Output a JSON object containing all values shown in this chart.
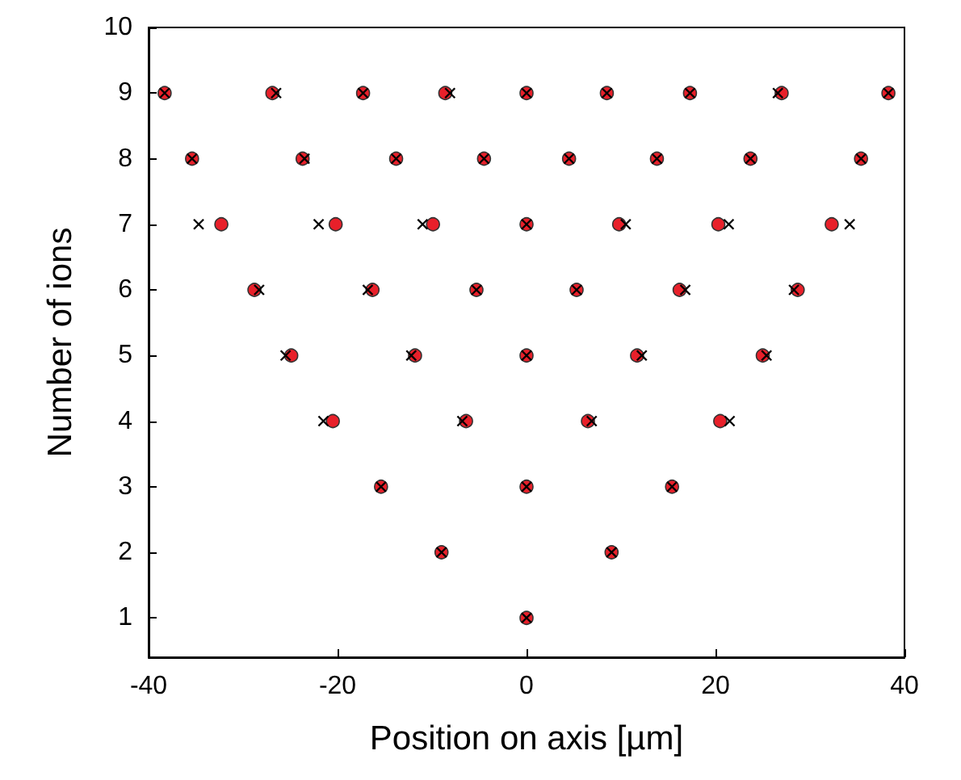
{
  "chart_data": {
    "type": "scatter",
    "xlabel": "Position on axis [µm]",
    "ylabel": "Number of ions",
    "xlim": [
      -40,
      40
    ],
    "xticks": [
      -40,
      -20,
      0,
      20,
      40
    ],
    "ylim": [
      0.4,
      10
    ],
    "yticks": [
      1,
      2,
      3,
      4,
      5,
      6,
      7,
      8,
      9,
      10
    ],
    "grid": false,
    "series": [
      {
        "color": "#e8202a",
        "marker": "circle",
        "x": [
          -38.3,
          -26.9,
          -17.3,
          -8.6,
          0,
          8.5,
          17.3,
          27.0,
          38.3,
          -35.4,
          -23.7,
          -13.8,
          -4.5,
          4.5,
          13.8,
          23.7,
          35.4,
          -32.3,
          -20.2,
          -9.9,
          0,
          9.8,
          20.3,
          32.3,
          -28.8,
          -16.3,
          -5.3,
          5.3,
          16.2,
          28.7,
          -24.9,
          -11.8,
          0,
          11.7,
          25.0,
          -20.5,
          -6.4,
          6.5,
          20.5,
          -15.4,
          0,
          15.4,
          -9.0,
          9.0,
          0
        ],
        "values": [
          9,
          9,
          9,
          9,
          9,
          9,
          9,
          9,
          9,
          8,
          8,
          8,
          8,
          8,
          8,
          8,
          8,
          7,
          7,
          7,
          7,
          7,
          7,
          7,
          6,
          6,
          6,
          6,
          6,
          6,
          5,
          5,
          5,
          5,
          5,
          4,
          4,
          4,
          4,
          3,
          3,
          3,
          2,
          2,
          1
        ]
      },
      {
        "color": "#000000",
        "marker": "cross",
        "x": [
          -38.3,
          -26.5,
          -17.3,
          -8.1,
          0,
          8.5,
          17.3,
          26.6,
          38.3,
          -35.4,
          -23.5,
          -13.8,
          -4.5,
          4.5,
          13.8,
          23.7,
          35.4,
          -34.7,
          -22.0,
          -11.0,
          0,
          10.5,
          21.4,
          34.2,
          -28.3,
          -16.8,
          -5.3,
          5.3,
          16.8,
          28.3,
          -25.5,
          -12.2,
          0,
          12.2,
          25.4,
          -21.5,
          -6.8,
          6.9,
          21.5,
          -15.4,
          0,
          15.4,
          -9.0,
          9.0,
          0
        ],
        "values": [
          9,
          9,
          9,
          9,
          9,
          9,
          9,
          9,
          9,
          8,
          8,
          8,
          8,
          8,
          8,
          8,
          8,
          7,
          7,
          7,
          7,
          7,
          7,
          7,
          6,
          6,
          6,
          6,
          6,
          6,
          5,
          5,
          5,
          5,
          5,
          4,
          4,
          4,
          4,
          3,
          3,
          3,
          2,
          2,
          1
        ]
      }
    ]
  }
}
